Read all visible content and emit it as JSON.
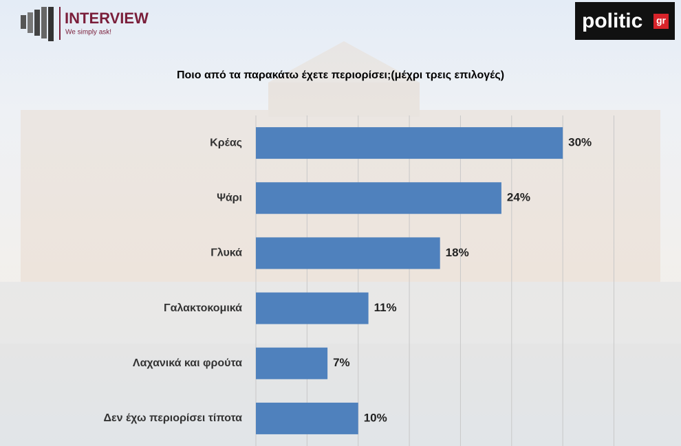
{
  "logos": {
    "brand": "INTERVIEW",
    "tagline": "We simply ask!",
    "site": "politic",
    "site_suffix": "gr"
  },
  "chart_data": {
    "type": "hbar",
    "title": "Ποιο από τα παρακάτω έχετε περιορίσει;(μέχρι τρεις επιλογές)",
    "categories": [
      "Κρέας",
      "Ψάρι",
      "Γλυκά",
      "Γαλακτοκομικά",
      "Λαχανικά και φρούτα",
      "Δεν έχω περιορίσει τίποτα"
    ],
    "values": [
      30,
      24,
      18,
      11,
      7,
      10
    ],
    "value_labels": [
      "30%",
      "24%",
      "18%",
      "11%",
      "7%",
      "10%"
    ],
    "color": "#4f81bd",
    "xlim": [
      0,
      35
    ],
    "xticks": [
      0,
      5,
      10,
      15,
      20,
      25,
      30,
      35
    ],
    "grid": true
  }
}
